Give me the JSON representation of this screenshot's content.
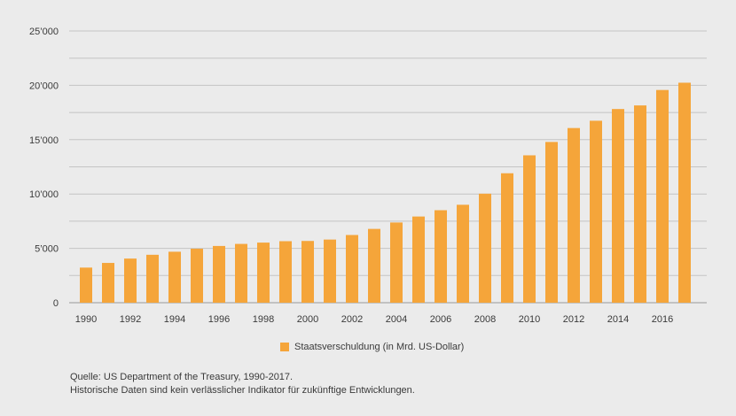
{
  "chart_data": {
    "type": "bar",
    "title": "",
    "xlabel": "",
    "ylabel": "",
    "categories": [
      "1990",
      "1991",
      "1992",
      "1993",
      "1994",
      "1995",
      "1996",
      "1997",
      "1998",
      "1999",
      "2000",
      "2001",
      "2002",
      "2003",
      "2004",
      "2005",
      "2006",
      "2007",
      "2008",
      "2009",
      "2010",
      "2011",
      "2012",
      "2013",
      "2014",
      "2015",
      "2016",
      "2017"
    ],
    "x_tick_labels": [
      "1990",
      "",
      "1992",
      "",
      "1994",
      "",
      "1996",
      "",
      "1998",
      "",
      "2000",
      "",
      "2002",
      "",
      "2004",
      "",
      "2006",
      "",
      "2008",
      "",
      "2010",
      "",
      "2012",
      "",
      "2014",
      "",
      "2016",
      ""
    ],
    "series": [
      {
        "name": "Staatsverschuldung (in Mrd. US-Dollar)",
        "color": "#f5a53a",
        "values": [
          3230,
          3660,
          4060,
          4410,
          4690,
          4970,
          5220,
          5410,
          5530,
          5660,
          5680,
          5810,
          6230,
          6790,
          7380,
          7930,
          8510,
          9010,
          10030,
          11910,
          13560,
          14790,
          16070,
          16740,
          17820,
          18150,
          19570,
          20240
        ]
      }
    ],
    "ylim": [
      0,
      25000
    ],
    "y_ticks": [
      0,
      2500,
      5000,
      7500,
      10000,
      12500,
      15000,
      17500,
      20000,
      22500,
      25000
    ],
    "y_tick_labels": [
      "0",
      "5’000",
      "10’000",
      "15’000",
      "20’000",
      "25’000"
    ],
    "grid": true,
    "legend_position": "bottom-center"
  },
  "legend": {
    "label": "Staatsverschuldung (in Mrd. US-Dollar)"
  },
  "footnote": {
    "line1": "Quelle: US Department of the Treasury, 1990-2017.",
    "line2": "Historische Daten sind kein verlässlicher Indikator für zukünftige Entwicklungen."
  }
}
